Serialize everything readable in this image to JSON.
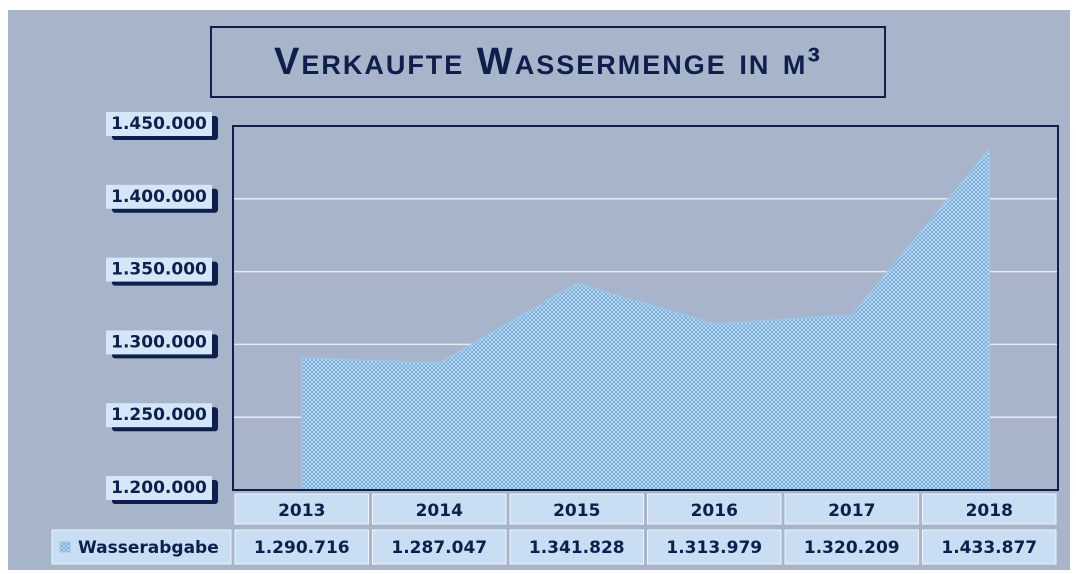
{
  "chart_data": {
    "type": "area",
    "title": "Verkaufte Wassermenge in m³",
    "categories": [
      "2013",
      "2014",
      "2015",
      "2016",
      "2017",
      "2018"
    ],
    "series": [
      {
        "name": "Wasserabgabe",
        "color": "#9cc7ea",
        "values": [
          1290716,
          1287047,
          1341828,
          1313979,
          1320209,
          1433877
        ],
        "value_labels": [
          "1.290.716",
          "1.287.047",
          "1.341.828",
          "1.313.979",
          "1.320.209",
          "1.433.877"
        ]
      }
    ],
    "ylim": [
      1200000,
      1450000
    ],
    "yticks": [
      {
        "value": 1200000,
        "label": "1.200.000"
      },
      {
        "value": 1250000,
        "label": "1.250.000"
      },
      {
        "value": 1300000,
        "label": "1.300.000"
      },
      {
        "value": 1350000,
        "label": "1.350.000"
      },
      {
        "value": 1400000,
        "label": "1.400.000"
      },
      {
        "value": 1450000,
        "label": "1.450.000"
      }
    ],
    "grid": true,
    "data_table": true
  }
}
